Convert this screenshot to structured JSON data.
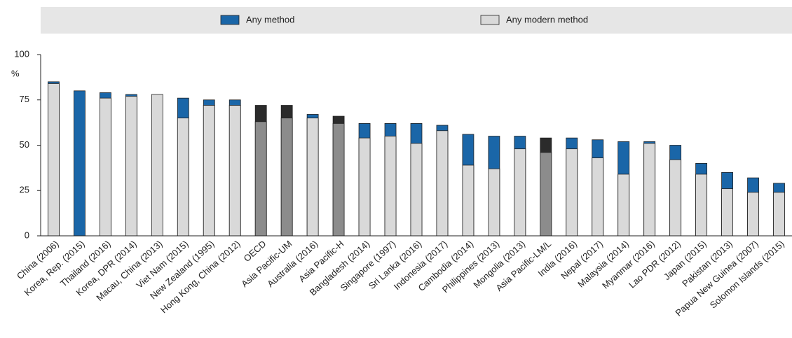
{
  "chart_data": {
    "type": "bar",
    "y_label": "%",
    "categories": [
      "China (2006)",
      "Korea, Rep. (2015)",
      "Thailand (2016)",
      "Korea, DPR (2014)",
      "Macau, China (2013)",
      "Viet Nam (2015)",
      "New Zealand (1995)",
      "Hong Kong, China (2012)",
      "OECD",
      "Asia Pacific-UM",
      "Australia (2016)",
      "Asia Pacific-H",
      "Bangladesh (2014)",
      "Singapore (1997)",
      "Sri Lanka (2016)",
      "Indonesia (2017)",
      "Cambodia (2014)",
      "Philippines (2013)",
      "Mongolia (2013)",
      "Asia Pacific-LM/L",
      "India (2016)",
      "Nepal (2017)",
      "Malaysia (2014)",
      "Myanmar (2016)",
      "Lao PDR (2012)",
      "Japan (2015)",
      "Pakistan (2013)",
      "Papua New Guinea (2007)",
      "Solomon Islands (2015)"
    ],
    "highlighted": [
      "OECD",
      "Asia Pacific-UM",
      "Asia Pacific-H",
      "Asia Pacific-LM/L"
    ],
    "series": [
      {
        "name": "Any method",
        "color": "#1a66a8",
        "highlight_color": "#2b2b2b",
        "values": [
          85,
          80,
          79,
          78,
          null,
          76,
          75,
          75,
          72,
          72,
          67,
          66,
          62,
          62,
          62,
          61,
          56,
          55,
          55,
          54,
          54,
          53,
          52,
          52,
          50,
          40,
          35,
          32,
          29
        ]
      },
      {
        "name": "Any modern method",
        "color": "#d9d9d9",
        "highlight_color": "#8c8c8c",
        "values": [
          84,
          null,
          76,
          77,
          78,
          65,
          72,
          72,
          63,
          65,
          65,
          62,
          54,
          55,
          51,
          58,
          39,
          37,
          48,
          46,
          48,
          43,
          34,
          51,
          42,
          34,
          26,
          24,
          24
        ]
      }
    ],
    "ylim": [
      0,
      100
    ],
    "yticks": [
      0,
      25,
      50,
      75,
      100
    ]
  }
}
